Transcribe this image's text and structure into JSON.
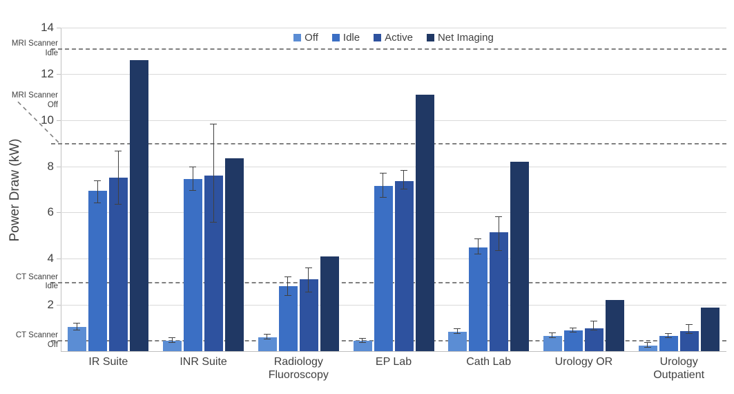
{
  "chart_data": {
    "type": "bar",
    "title": "",
    "xlabel": "",
    "ylabel": "Power Draw (kW)",
    "ylim": [
      0,
      14
    ],
    "yticks": [
      2,
      4,
      6,
      8,
      10,
      12,
      14
    ],
    "grid": true,
    "legend_position": "top-center",
    "categories": [
      "IR Suite",
      "INR Suite",
      "Radiology\nFluoroscopy",
      "EP Lab",
      "Cath Lab",
      "Urology OR",
      "Urology\nOutpatient"
    ],
    "series": [
      {
        "name": "Off",
        "color": "#5b8dd4",
        "values": [
          1.05,
          0.45,
          0.6,
          0.45,
          0.85,
          0.65,
          0.25
        ],
        "err_low": [
          0.9,
          0.35,
          0.5,
          0.35,
          0.75,
          0.58,
          0.15
        ],
        "err_high": [
          1.2,
          0.58,
          0.72,
          0.55,
          0.95,
          0.78,
          0.35
        ]
      },
      {
        "name": "Idle",
        "color": "#3b6fc4",
        "values": [
          6.95,
          7.45,
          2.8,
          7.15,
          4.5,
          0.9,
          0.67
        ],
        "err_low": [
          6.4,
          6.95,
          2.4,
          6.65,
          4.2,
          0.8,
          0.58
        ],
        "err_high": [
          7.35,
          7.95,
          3.2,
          7.7,
          4.85,
          1.0,
          0.76
        ]
      },
      {
        "name": "Active",
        "color": "#2e529f",
        "values": [
          7.5,
          7.6,
          3.1,
          7.35,
          5.15,
          1.0,
          0.88
        ],
        "err_low": [
          6.35,
          5.55,
          2.55,
          7.0,
          4.35,
          0.9,
          0.76
        ],
        "err_high": [
          8.65,
          9.8,
          3.6,
          7.8,
          5.8,
          1.3,
          1.15
        ]
      },
      {
        "name": "Net Imaging",
        "color": "#203864",
        "values": [
          12.6,
          8.35,
          4.1,
          11.1,
          8.2,
          2.2,
          1.9
        ]
      }
    ],
    "reference_lines": [
      {
        "label": "MRI Scanner\nIdle",
        "value": 13.1,
        "label_value": 13.1,
        "callout": false
      },
      {
        "label": "MRI Scanner\nOff",
        "value": 9.0,
        "label_value": 10.85,
        "callout": true
      },
      {
        "label": "CT Scanner\nIdle",
        "value": 3.0,
        "label_value": 3.0,
        "callout": false
      },
      {
        "label": "CT Scanner\nOff",
        "value": 0.47,
        "label_value": 0.47,
        "callout": false
      }
    ]
  }
}
